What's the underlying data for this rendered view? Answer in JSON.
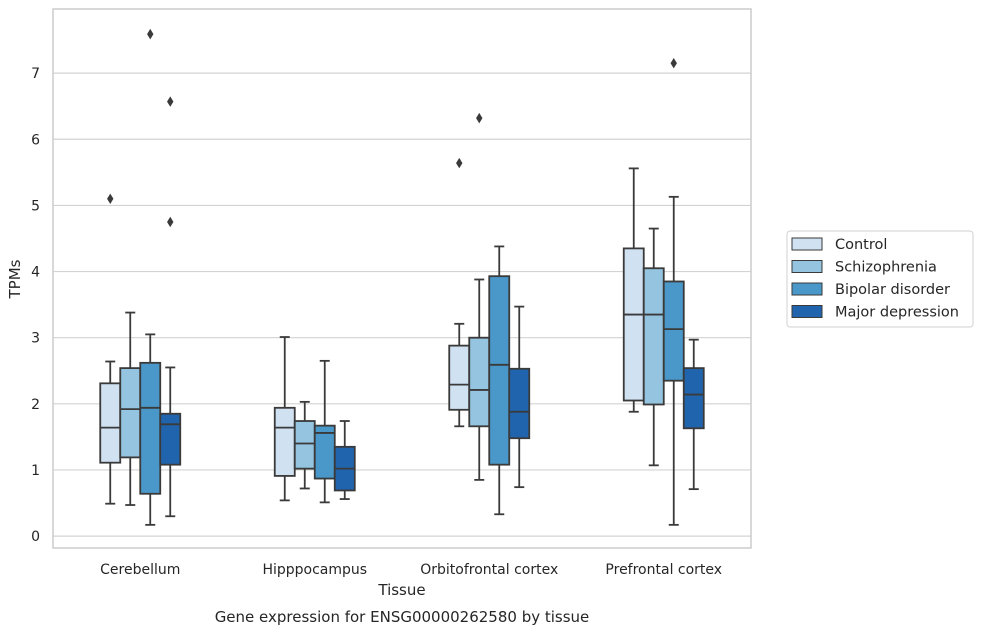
{
  "chart_data": {
    "type": "boxplot",
    "title": "Gene expression for ENSG00000262580 by tissue",
    "xlabel": "Tissue",
    "ylabel": "TPMs",
    "ylim": [
      -0.18,
      7.97
    ],
    "yticks": [
      0,
      1,
      2,
      3,
      4,
      5,
      6,
      7
    ],
    "grid": "horizontal",
    "legend_placement": "right",
    "categories": [
      "Cerebellum",
      "Hipppocampus",
      "Orbitofrontal cortex",
      "Prefrontal cortex"
    ],
    "series": [
      {
        "name": "Control",
        "color": "#d0e1f2",
        "boxes": [
          {
            "whisker_low": 0.49,
            "q1": 1.11,
            "median": 1.64,
            "q3": 2.31,
            "whisker_high": 2.64,
            "outliers": [
              5.1
            ]
          },
          {
            "whisker_low": 0.54,
            "q1": 0.91,
            "median": 1.64,
            "q3": 1.94,
            "whisker_high": 3.01,
            "outliers": []
          },
          {
            "whisker_low": 1.66,
            "q1": 1.91,
            "median": 2.29,
            "q3": 2.88,
            "whisker_high": 3.21,
            "outliers": [
              5.64
            ]
          },
          {
            "whisker_low": 1.88,
            "q1": 2.05,
            "median": 3.35,
            "q3": 4.35,
            "whisker_high": 5.56,
            "outliers": []
          }
        ]
      },
      {
        "name": "Schizophrenia",
        "color": "#94c4df",
        "boxes": [
          {
            "whisker_low": 0.47,
            "q1": 1.19,
            "median": 1.92,
            "q3": 2.54,
            "whisker_high": 3.38,
            "outliers": []
          },
          {
            "whisker_low": 0.72,
            "q1": 1.02,
            "median": 1.4,
            "q3": 1.74,
            "whisker_high": 2.03,
            "outliers": []
          },
          {
            "whisker_low": 0.85,
            "q1": 1.66,
            "median": 2.21,
            "q3": 3.0,
            "whisker_high": 3.88,
            "outliers": [
              6.32
            ]
          },
          {
            "whisker_low": 1.07,
            "q1": 1.99,
            "median": 3.35,
            "q3": 4.05,
            "whisker_high": 4.65,
            "outliers": []
          }
        ]
      },
      {
        "name": "Bipolar disorder",
        "color": "#4a98c9",
        "boxes": [
          {
            "whisker_low": 0.17,
            "q1": 0.64,
            "median": 1.94,
            "q3": 2.62,
            "whisker_high": 3.05,
            "outliers": [
              7.59
            ]
          },
          {
            "whisker_low": 0.51,
            "q1": 0.87,
            "median": 1.56,
            "q3": 1.67,
            "whisker_high": 2.65,
            "outliers": []
          },
          {
            "whisker_low": 0.33,
            "q1": 1.08,
            "median": 2.59,
            "q3": 3.93,
            "whisker_high": 4.38,
            "outliers": []
          },
          {
            "whisker_low": 0.17,
            "q1": 2.35,
            "median": 3.13,
            "q3": 3.85,
            "whisker_high": 5.13,
            "outliers": [
              7.15
            ]
          }
        ]
      },
      {
        "name": "Major depression",
        "color": "#2064ad",
        "boxes": [
          {
            "whisker_low": 0.3,
            "q1": 1.08,
            "median": 1.69,
            "q3": 1.85,
            "whisker_high": 2.55,
            "outliers": [
              6.57,
              4.75
            ]
          },
          {
            "whisker_low": 0.56,
            "q1": 0.69,
            "median": 1.02,
            "q3": 1.35,
            "whisker_high": 1.74,
            "outliers": []
          },
          {
            "whisker_low": 0.74,
            "q1": 1.48,
            "median": 1.88,
            "q3": 2.53,
            "whisker_high": 3.47,
            "outliers": []
          },
          {
            "whisker_low": 0.71,
            "q1": 1.63,
            "median": 2.14,
            "q3": 2.54,
            "whisker_high": 2.97,
            "outliers": []
          }
        ]
      }
    ]
  }
}
